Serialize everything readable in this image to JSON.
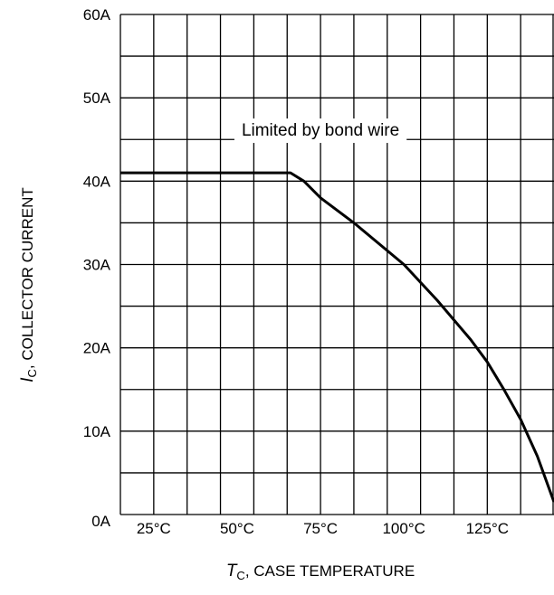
{
  "chart_data": {
    "type": "line",
    "title": "",
    "xlabel": {
      "symbol": "T",
      "subscript": "C",
      "text": ", CASE TEMPERATURE"
    },
    "ylabel": {
      "symbol": "I",
      "subscript": "C",
      "text": ", COLLECTOR CURRENT"
    },
    "xlim": [
      15,
      145
    ],
    "ylim": [
      0,
      60
    ],
    "x_grid": [
      15,
      25,
      35,
      45,
      55,
      65,
      75,
      85,
      95,
      105,
      115,
      125,
      135,
      145
    ],
    "y_grid": [
      0,
      5,
      10,
      15,
      20,
      25,
      30,
      35,
      40,
      45,
      50,
      55,
      60
    ],
    "x_ticks": [
      {
        "value": 25,
        "label": "25°C"
      },
      {
        "value": 50,
        "label": "50°C"
      },
      {
        "value": 75,
        "label": "75°C"
      },
      {
        "value": 100,
        "label": "100°C"
      },
      {
        "value": 125,
        "label": "125°C"
      }
    ],
    "y_ticks": [
      {
        "value": 0,
        "label": "0A"
      },
      {
        "value": 10,
        "label": "10A"
      },
      {
        "value": 20,
        "label": "20A"
      },
      {
        "value": 30,
        "label": "30A"
      },
      {
        "value": 40,
        "label": "40A"
      },
      {
        "value": 50,
        "label": "50A"
      },
      {
        "value": 60,
        "label": "60A"
      }
    ],
    "grid": true,
    "annotation": {
      "text": "Limited by bond wire",
      "x": 75,
      "y": 46
    },
    "series": [
      {
        "color": "#000000",
        "x": [
          15,
          66,
          70,
          75,
          85,
          100,
          110,
          120,
          125,
          130,
          135,
          140,
          145
        ],
        "y": [
          41,
          41,
          40,
          38,
          35,
          30,
          25.7,
          21,
          18.3,
          15,
          11.4,
          7,
          1.5
        ]
      }
    ]
  }
}
